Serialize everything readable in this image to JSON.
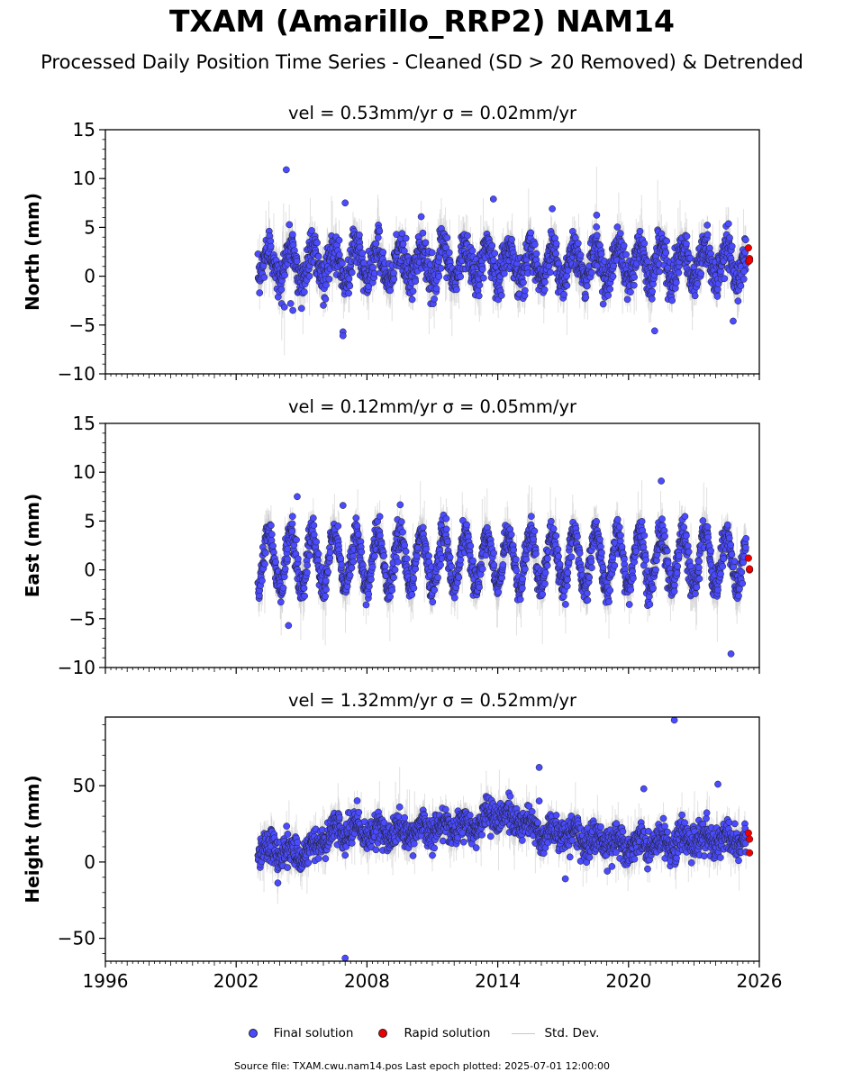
{
  "figure": {
    "title": "TXAM (Amarillo_RRP2) NAM14",
    "subtitle": "Processed Daily Position Time Series - Cleaned (SD > 20 Removed) & Detrended",
    "source_note": "Source file: TXAM.cwu.nam14.pos  Last epoch plotted: 2025-07-01 12:00:00"
  },
  "legend": {
    "final_label": "Final solution",
    "rapid_label": "Rapid solution",
    "std_label": "Std. Dev."
  },
  "colors": {
    "final": "#4a4aff",
    "rapid": "#ee0000",
    "std_dev": "#c8c8c8",
    "edge": "#202020"
  },
  "chart_data": [
    {
      "type": "scatter",
      "panel": "north",
      "title": "vel = 0.53mm/yr   σ = 0.02mm/yr",
      "ylabel": "North (mm)",
      "xlim": [
        1996,
        2026
      ],
      "ylim": [
        -10,
        15
      ],
      "yticks": [
        -10,
        -5,
        0,
        5,
        10,
        15
      ],
      "xticks": [
        1996,
        2002,
        2008,
        2014,
        2020,
        2026
      ],
      "show_x_tick_labels": false,
      "series": [
        {
          "name": "Final solution",
          "data_span": [
            2003.0,
            2025.4
          ],
          "mean": 1.3,
          "seasonal_amplitude": 1.8,
          "scatter_sd": 1.0,
          "std_dev_typical": 1.5
        },
        {
          "name": "Rapid solution",
          "x": [
            2025.5,
            2025.5,
            2025.55,
            2025.55
          ],
          "y": [
            2.9,
            1.5,
            1.8,
            1.6
          ]
        }
      ],
      "outliers": {
        "x": [
          2004.3,
          2004.5,
          2006.9,
          2006.9,
          2007.0,
          2004.6,
          2005.0,
          2013.8,
          2016.5,
          2021.2,
          2024.8,
          2025.3
        ],
        "y": [
          10.9,
          -2.8,
          -5.7,
          -6.1,
          7.5,
          -3.5,
          -3.3,
          7.9,
          6.9,
          -5.6,
          -4.6,
          0.5
        ]
      }
    },
    {
      "type": "scatter",
      "panel": "east",
      "title": "vel = 0.12mm/yr   σ = 0.05mm/yr",
      "ylabel": "East (mm)",
      "xlim": [
        1996,
        2026
      ],
      "ylim": [
        -10,
        15
      ],
      "yticks": [
        -10,
        -5,
        0,
        5,
        10,
        15
      ],
      "xticks": [
        1996,
        2002,
        2008,
        2014,
        2020,
        2026
      ],
      "show_x_tick_labels": false,
      "series": [
        {
          "name": "Final solution",
          "data_span": [
            2003.0,
            2025.4
          ],
          "mean": 1.0,
          "seasonal_amplitude": 2.8,
          "scatter_sd": 0.8,
          "std_dev_typical": 1.5
        },
        {
          "name": "Rapid solution",
          "x": [
            2025.5,
            2025.55,
            2025.55
          ],
          "y": [
            1.2,
            0.0,
            0.1
          ]
        }
      ],
      "outliers": {
        "x": [
          2004.4,
          2004.8,
          2006.9,
          2021.5,
          2024.7
        ],
        "y": [
          -5.7,
          7.5,
          6.6,
          9.1,
          -8.6
        ]
      }
    },
    {
      "type": "scatter",
      "panel": "height",
      "title": "vel = 1.32mm/yr   σ = 0.52mm/yr",
      "ylabel": "Height (mm)",
      "xlim": [
        1996,
        2026
      ],
      "ylim": [
        -65,
        95
      ],
      "yticks": [
        -50,
        0,
        50
      ],
      "xticks": [
        1996,
        2002,
        2008,
        2014,
        2020,
        2026
      ],
      "show_x_tick_labels": true,
      "series": [
        {
          "name": "Final solution",
          "data_span": [
            2003.0,
            2025.4
          ],
          "trend_knots_x": [
            2003,
            2005,
            2006.5,
            2010,
            2013,
            2014,
            2016,
            2020,
            2025.4
          ],
          "trend_knots_y": [
            10,
            5,
            20,
            20,
            25,
            32,
            20,
            12,
            15
          ],
          "seasonal_amplitude": 4,
          "scatter_sd": 5,
          "std_dev_typical": 8
        },
        {
          "name": "Rapid solution",
          "x": [
            2025.5,
            2025.55,
            2025.55
          ],
          "y": [
            19,
            15,
            6
          ]
        }
      ],
      "outliers": {
        "x": [
          2007.0,
          2015.9,
          2015.9,
          2020.7,
          2022.1,
          2024.1,
          2017.1
        ],
        "y": [
          -63,
          62,
          40,
          48,
          93,
          51,
          -11
        ]
      }
    }
  ]
}
